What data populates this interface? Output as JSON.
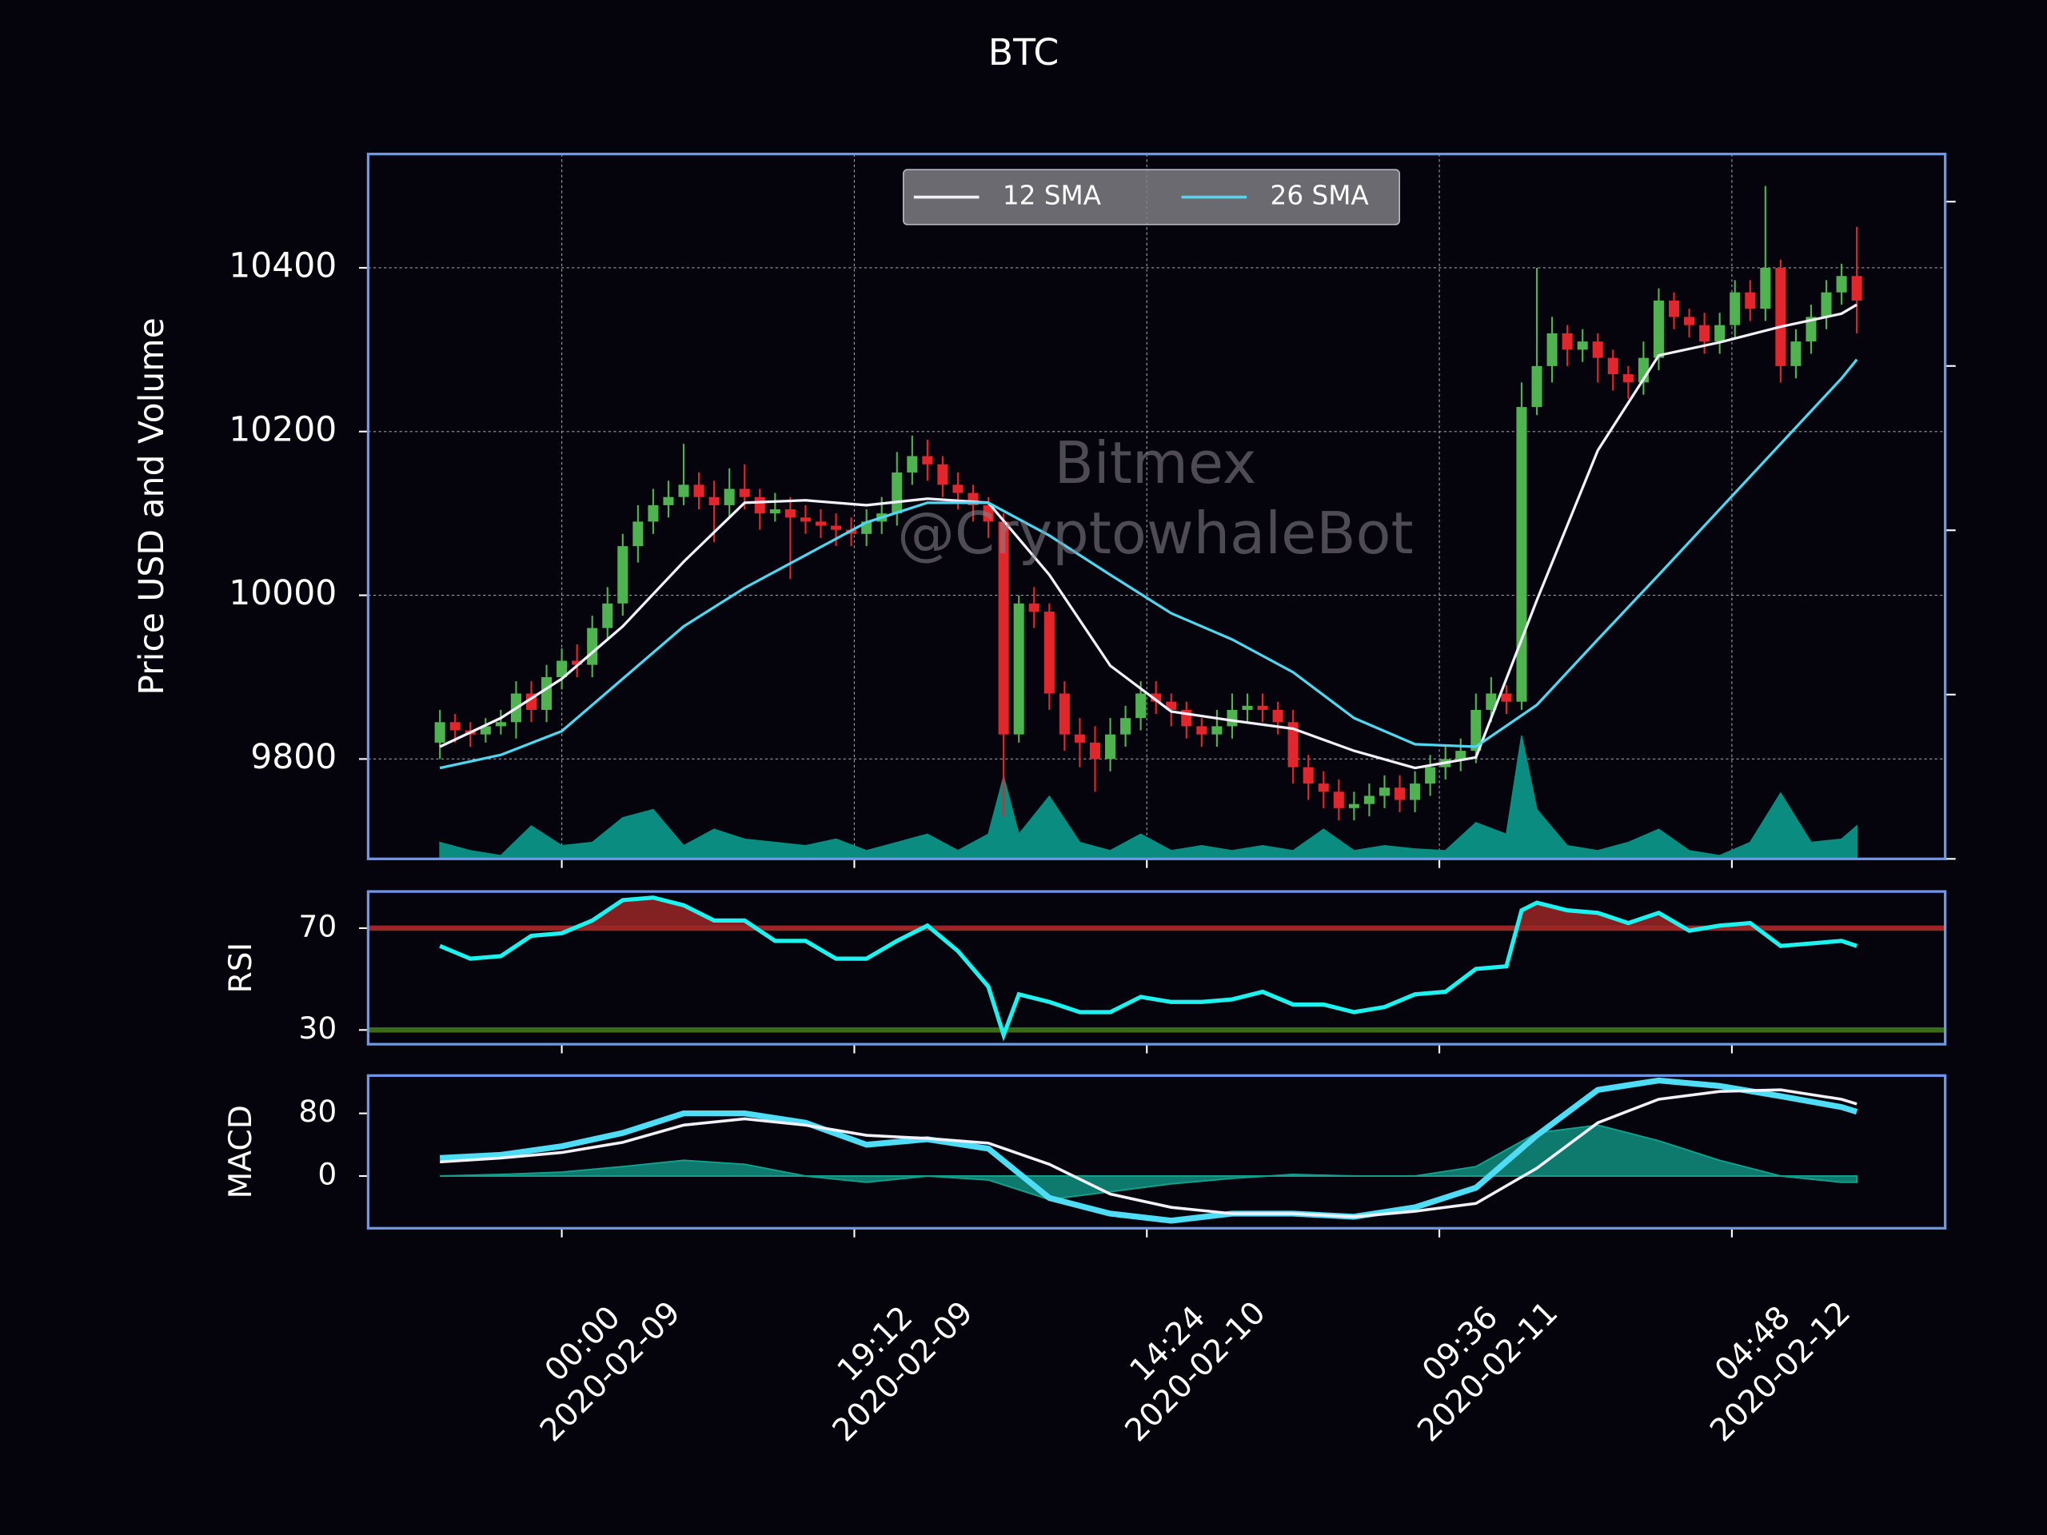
{
  "chart_data": [
    {
      "type": "candlestick",
      "title": "BTC",
      "y_label": "Price USD and Volume",
      "xlim": [
        -4.71,
        98.8
      ],
      "xticks": [
        8,
        27.2,
        46.4,
        65.6,
        84.8
      ],
      "ylim": [
        9678,
        10539
      ],
      "yticks": [
        9800,
        10000,
        10200,
        10400
      ],
      "grid": true,
      "y2lim": [
        0,
        4.29
      ],
      "y2ticks": [
        0,
        1,
        2,
        3,
        4
      ],
      "up_color": "#4fb34f",
      "down_color": "#e3262b",
      "open": [
        9820,
        9845,
        9835,
        9830,
        9840,
        9845,
        9880,
        9860,
        9900,
        9920,
        9915,
        9960,
        9990,
        10060,
        10090,
        10110,
        10120,
        10135,
        10120,
        10110,
        10130,
        10120,
        10100,
        10105,
        10095,
        10090,
        10085,
        10080,
        10075,
        10090,
        10100,
        10150,
        10170,
        10160,
        10135,
        10125,
        10110,
        10090,
        9830,
        9990,
        9980,
        9880,
        9830,
        9820,
        9800,
        9830,
        9850,
        9880,
        9870,
        9860,
        9840,
        9830,
        9840,
        9860,
        9865,
        9860,
        9845,
        9790,
        9770,
        9760,
        9740,
        9745,
        9755,
        9765,
        9750,
        9770,
        9790,
        9800,
        9810,
        9860,
        9880,
        9870,
        10230,
        10280,
        10320,
        10300,
        10310,
        10290,
        10270,
        10260,
        10290,
        10360,
        10340,
        10330,
        10310,
        10330,
        10370,
        10350,
        10400,
        10280,
        10310,
        10340,
        10370,
        10390
      ],
      "high": [
        9860,
        9855,
        9845,
        9850,
        9860,
        9895,
        9895,
        9915,
        9935,
        9940,
        9975,
        10010,
        10075,
        10110,
        10130,
        10140,
        10185,
        10150,
        10140,
        10155,
        10160,
        10130,
        10125,
        10120,
        10110,
        10105,
        10100,
        10095,
        10105,
        10120,
        10175,
        10195,
        10190,
        10170,
        10150,
        10135,
        10120,
        10100,
        10000,
        10010,
        9990,
        9895,
        9850,
        9840,
        9850,
        9865,
        9895,
        9895,
        9880,
        9870,
        9850,
        9860,
        9880,
        9880,
        9880,
        9870,
        9860,
        9805,
        9785,
        9775,
        9760,
        9770,
        9780,
        9780,
        9785,
        9805,
        9815,
        9825,
        9880,
        9900,
        9890,
        10260,
        10400,
        10340,
        10330,
        10325,
        10320,
        10300,
        10280,
        10310,
        10375,
        10370,
        10350,
        10345,
        10345,
        10385,
        10385,
        10500,
        10410,
        10325,
        10355,
        10385,
        10405,
        10450
      ],
      "low": [
        9800,
        9820,
        9815,
        9820,
        9830,
        9825,
        9845,
        9845,
        9885,
        9900,
        9900,
        9945,
        9975,
        10040,
        10075,
        10095,
        10110,
        10105,
        10065,
        10095,
        10105,
        10080,
        10090,
        10020,
        10075,
        10070,
        10060,
        10060,
        10060,
        10075,
        10085,
        10135,
        10140,
        10120,
        10105,
        10090,
        10070,
        9730,
        9820,
        9960,
        9860,
        9810,
        9790,
        9760,
        9785,
        9815,
        9835,
        9855,
        9840,
        9825,
        9815,
        9815,
        9825,
        9845,
        9845,
        9830,
        9770,
        9750,
        9740,
        9725,
        9725,
        9730,
        9740,
        9735,
        9735,
        9755,
        9775,
        9785,
        9795,
        9845,
        9855,
        9860,
        10220,
        10260,
        10280,
        10285,
        10260,
        10250,
        10240,
        10245,
        10275,
        10325,
        10315,
        10295,
        10295,
        10315,
        10335,
        10335,
        10260,
        10265,
        10295,
        10325,
        10355,
        10320
      ],
      "close": [
        9845,
        9835,
        9830,
        9840,
        9845,
        9880,
        9860,
        9900,
        9920,
        9915,
        9960,
        9990,
        10060,
        10090,
        10110,
        10120,
        10135,
        10120,
        10110,
        10130,
        10120,
        10100,
        10105,
        10095,
        10090,
        10085,
        10080,
        10075,
        10090,
        10100,
        10150,
        10170,
        10160,
        10135,
        10125,
        10110,
        10090,
        9830,
        9990,
        9980,
        9880,
        9830,
        9820,
        9800,
        9830,
        9850,
        9880,
        9870,
        9860,
        9840,
        9830,
        9840,
        9860,
        9865,
        9860,
        9845,
        9790,
        9770,
        9760,
        9740,
        9745,
        9755,
        9765,
        9750,
        9770,
        9790,
        9800,
        9810,
        9860,
        9880,
        9870,
        10230,
        10280,
        10320,
        10300,
        10310,
        10290,
        10270,
        10260,
        10290,
        10360,
        10340,
        10330,
        10310,
        10330,
        10370,
        10350,
        10400,
        10280,
        10310,
        10340,
        10370,
        10390,
        10360
      ],
      "volume": {
        "axis": "y2",
        "color": "#0b8c80",
        "x": [
          0,
          2,
          4,
          6,
          8,
          10,
          12,
          14,
          16,
          18,
          20,
          22,
          24,
          26,
          28,
          30,
          32,
          34,
          36,
          37,
          38,
          40,
          42,
          44,
          46,
          48,
          50,
          52,
          54,
          56,
          58,
          60,
          62,
          64,
          66,
          68,
          70,
          71,
          72,
          74,
          76,
          78,
          80,
          82,
          84,
          86,
          88,
          90,
          92,
          93
        ],
        "values": [
          0.1,
          0.05,
          0.02,
          0.2,
          0.08,
          0.1,
          0.25,
          0.3,
          0.08,
          0.18,
          0.12,
          0.1,
          0.08,
          0.12,
          0.05,
          0.1,
          0.15,
          0.05,
          0.15,
          0.5,
          0.15,
          0.38,
          0.1,
          0.05,
          0.15,
          0.05,
          0.08,
          0.05,
          0.08,
          0.05,
          0.18,
          0.05,
          0.08,
          0.06,
          0.05,
          0.22,
          0.15,
          0.75,
          0.3,
          0.08,
          0.05,
          0.1,
          0.18,
          0.05,
          0.02,
          0.1,
          0.4,
          0.1,
          0.12,
          0.2
        ]
      },
      "series": [
        {
          "name": "12 SMA",
          "color": "#f2f0fa",
          "x": [
            0,
            4,
            8,
            12,
            16,
            20,
            24,
            28,
            32,
            36,
            40,
            44,
            48,
            52,
            56,
            60,
            64,
            68,
            72,
            76,
            80,
            84,
            88,
            92,
            93
          ],
          "values": [
            9815,
            9850,
            9898,
            9962,
            10041,
            10113,
            10116,
            10110,
            10118,
            10113,
            10025,
            9914,
            9858,
            9847,
            9837,
            9810,
            9789,
            9802,
            9994,
            10177,
            10293,
            10309,
            10328,
            10344,
            10355
          ]
        },
        {
          "name": "26 SMA",
          "color": "#4fd6f0",
          "x": [
            0,
            4,
            8,
            12,
            16,
            20,
            24,
            28,
            32,
            36,
            40,
            44,
            48,
            52,
            56,
            60,
            64,
            68,
            72,
            76,
            80,
            84,
            88,
            92,
            93
          ],
          "values": [
            9789,
            9805,
            9834,
            9898,
            9962,
            10009,
            10049,
            10089,
            10113,
            10113,
            10073,
            10025,
            9978,
            9946,
            9906,
            9850,
            9818,
            9815,
            9866,
            9946,
            10025,
            10105,
            10185,
            10265,
            10288
          ]
        }
      ],
      "legend": "upper center",
      "watermark": [
        "Bitmex",
        "@CryptowhaleBot"
      ]
    },
    {
      "type": "rsi",
      "y_label": "RSI",
      "xlim": [
        -4.71,
        98.8
      ],
      "xticks": [
        8,
        27.2,
        46.4,
        65.6,
        84.8
      ],
      "ylim": [
        24.4,
        84.4
      ],
      "yticks": [
        30,
        70
      ],
      "reference_lines": [
        {
          "value": 70,
          "color": "#9a2626"
        },
        {
          "value": 30,
          "color": "#3d6b14"
        }
      ],
      "series": [
        {
          "color": "#1ef2ee",
          "x": [
            0,
            2,
            4,
            6,
            8,
            10,
            12,
            14,
            16,
            18,
            20,
            22,
            24,
            26,
            28,
            30,
            32,
            34,
            36,
            37,
            38,
            40,
            42,
            44,
            46,
            48,
            50,
            52,
            54,
            56,
            58,
            60,
            62,
            64,
            66,
            68,
            70,
            71,
            72,
            74,
            76,
            78,
            80,
            82,
            84,
            86,
            88,
            90,
            92,
            93
          ],
          "values": [
            63,
            58,
            59,
            67,
            68,
            73,
            81,
            82,
            79,
            73,
            73,
            65,
            65,
            58,
            58,
            65,
            71,
            61,
            47,
            28,
            44,
            41,
            37,
            37,
            43,
            41,
            41,
            42,
            45,
            40,
            40,
            37,
            39,
            44,
            45,
            54,
            55,
            77,
            80,
            77,
            76,
            72,
            76,
            69,
            71,
            72,
            63,
            64,
            65,
            63
          ]
        }
      ]
    },
    {
      "type": "macd",
      "y_label": "MACD",
      "xlim": [
        -4.71,
        98.8
      ],
      "xticks": [
        {
          "value": 8,
          "label": [
            "00:00",
            "2020-02-09"
          ]
        },
        {
          "value": 27.2,
          "label": [
            "19:12",
            "2020-02-09"
          ]
        },
        {
          "value": 46.4,
          "label": [
            "14:24",
            "2020-02-10"
          ]
        },
        {
          "value": 65.6,
          "label": [
            "09:36",
            "2020-02-11"
          ]
        },
        {
          "value": 84.8,
          "label": [
            "04:48",
            "2020-02-12"
          ]
        }
      ],
      "ylim": [
        -66.7,
        128.3
      ],
      "yticks": [
        0,
        80
      ],
      "histogram": {
        "color": "#12a08e",
        "x": [
          0,
          4,
          8,
          12,
          16,
          20,
          24,
          28,
          32,
          36,
          40,
          44,
          48,
          52,
          56,
          60,
          64,
          68,
          72,
          76,
          80,
          84,
          88,
          92,
          93
        ],
        "values": [
          0,
          2,
          5,
          12,
          20,
          15,
          0,
          -8,
          0,
          -5,
          -30,
          -20,
          -10,
          -3,
          2,
          0,
          0,
          12,
          55,
          65,
          45,
          20,
          0,
          -8,
          -8
        ]
      },
      "series": [
        {
          "color": "#4fdcf5",
          "x": [
            0,
            4,
            8,
            12,
            16,
            20,
            24,
            28,
            32,
            36,
            40,
            44,
            48,
            52,
            56,
            60,
            64,
            68,
            72,
            76,
            80,
            84,
            88,
            92,
            93
          ],
          "values": [
            23,
            27,
            38,
            55,
            80,
            80,
            68,
            40,
            47,
            35,
            -28,
            -48,
            -57,
            -48,
            -48,
            -52,
            -40,
            -15,
            52,
            110,
            122,
            115,
            102,
            88,
            82
          ]
        },
        {
          "color": "#f2f0fa",
          "x": [
            0,
            4,
            8,
            12,
            16,
            20,
            24,
            28,
            32,
            36,
            40,
            44,
            48,
            52,
            56,
            60,
            64,
            68,
            72,
            76,
            80,
            84,
            88,
            92,
            93
          ],
          "values": [
            18,
            23,
            30,
            43,
            65,
            73,
            65,
            52,
            48,
            42,
            15,
            -23,
            -40,
            -48,
            -48,
            -52,
            -45,
            -35,
            10,
            68,
            98,
            108,
            110,
            98,
            92
          ]
        }
      ]
    }
  ]
}
